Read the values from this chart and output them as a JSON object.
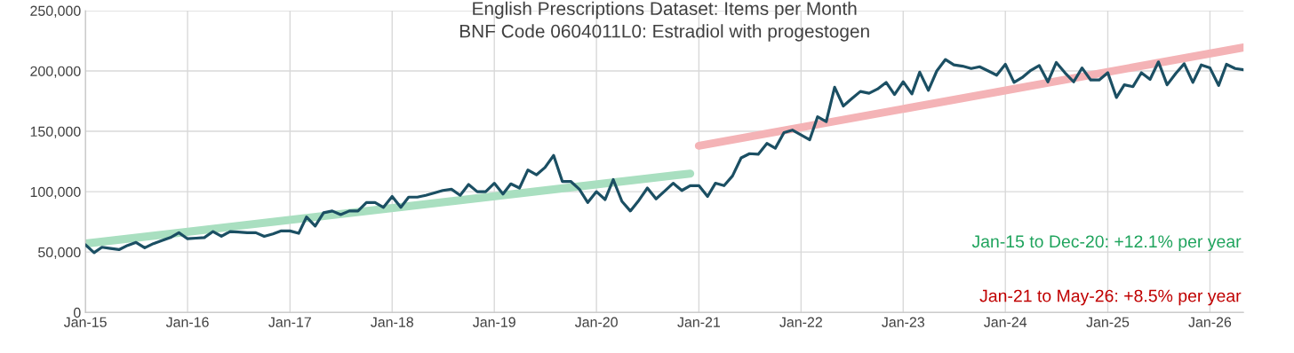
{
  "chart_data": {
    "type": "line",
    "title": "English Prescriptions Dataset: Items per Month",
    "subtitle": "BNF Code 0604011L0: Estradiol with progestogen",
    "x": [
      "2015-01",
      "2015-02",
      "2015-03",
      "2015-04",
      "2015-05",
      "2015-06",
      "2015-07",
      "2015-08",
      "2015-09",
      "2015-10",
      "2015-11",
      "2015-12",
      "2016-01",
      "2016-02",
      "2016-03",
      "2016-04",
      "2016-05",
      "2016-06",
      "2016-07",
      "2016-08",
      "2016-09",
      "2016-10",
      "2016-11",
      "2016-12",
      "2017-01",
      "2017-02",
      "2017-03",
      "2017-04",
      "2017-05",
      "2017-06",
      "2017-07",
      "2017-08",
      "2017-09",
      "2017-10",
      "2017-11",
      "2017-12",
      "2018-01",
      "2018-02",
      "2018-03",
      "2018-04",
      "2018-05",
      "2018-06",
      "2018-07",
      "2018-08",
      "2018-09",
      "2018-10",
      "2018-11",
      "2018-12",
      "2019-01",
      "2019-02",
      "2019-03",
      "2019-04",
      "2019-05",
      "2019-06",
      "2019-07",
      "2019-08",
      "2019-09",
      "2019-10",
      "2019-11",
      "2019-12",
      "2020-01",
      "2020-02",
      "2020-03",
      "2020-04",
      "2020-05",
      "2020-06",
      "2020-07",
      "2020-08",
      "2020-09",
      "2020-10",
      "2020-11",
      "2020-12",
      "2021-01",
      "2021-02",
      "2021-03",
      "2021-04",
      "2021-05",
      "2021-06",
      "2021-07",
      "2021-08",
      "2021-09",
      "2021-10",
      "2021-11",
      "2021-12",
      "2022-01",
      "2022-02",
      "2022-03",
      "2022-04",
      "2022-05",
      "2022-06",
      "2022-07",
      "2022-08",
      "2022-09",
      "2022-10",
      "2022-11",
      "2022-12",
      "2023-01",
      "2023-02",
      "2023-03",
      "2023-04",
      "2023-05",
      "2023-06",
      "2023-07",
      "2023-08",
      "2023-09",
      "2023-10",
      "2023-11",
      "2023-12",
      "2024-01",
      "2024-02",
      "2024-03",
      "2024-04",
      "2024-05",
      "2024-06",
      "2024-07",
      "2024-08",
      "2024-09",
      "2024-10",
      "2024-11",
      "2024-12",
      "2025-01",
      "2025-02",
      "2025-03",
      "2025-04",
      "2025-05",
      "2025-06",
      "2025-07",
      "2025-08",
      "2025-09",
      "2025-10",
      "2025-11",
      "2025-12",
      "2026-01",
      "2026-02",
      "2026-03",
      "2026-04",
      "2026-05"
    ],
    "series": [
      {
        "color": "#a9dfc0",
        "x": [
          "2015-01",
          "2020-12"
        ],
        "values": [
          57000,
          115000
        ]
      },
      {
        "color": "#f4b3b6",
        "x": [
          "2021-01",
          "2026-05"
        ],
        "values": [
          138000,
          219500
        ]
      },
      {
        "color": "#1b4f63",
        "values": [
          56000,
          49500,
          54000,
          53000,
          52000,
          55500,
          58000,
          53500,
          57000,
          59500,
          62000,
          66000,
          61000,
          61500,
          62000,
          67000,
          63000,
          67000,
          66500,
          66000,
          66000,
          63000,
          65000,
          67500,
          67500,
          65500,
          79000,
          71500,
          82500,
          84000,
          81000,
          84000,
          84000,
          91000,
          91000,
          87000,
          96000,
          87000,
          95500,
          95500,
          97000,
          99000,
          101000,
          102000,
          97000,
          106000,
          100000,
          100000,
          107000,
          98000,
          106500,
          103000,
          118000,
          114000,
          120000,
          130000,
          108500,
          108500,
          102000,
          91000,
          100000,
          93500,
          110000,
          92000,
          84000,
          93000,
          103000,
          94000,
          100500,
          107000,
          101000,
          105000,
          105000,
          96000,
          107000,
          105000,
          113000,
          128000,
          131500,
          131000,
          140000,
          136000,
          149000,
          151000,
          147000,
          143000,
          162000,
          158000,
          186500,
          171000,
          177000,
          183000,
          181500,
          185000,
          190500,
          180500,
          191000,
          181000,
          199000,
          184000,
          200000,
          209500,
          205000,
          204000,
          202000,
          203500,
          200000,
          196500,
          205500,
          190500,
          194500,
          200500,
          204500,
          191000,
          207000,
          198500,
          191000,
          202500,
          192500,
          192500,
          198500,
          178000,
          188500,
          187000,
          198500,
          193000,
          207500,
          188500,
          198000,
          206000,
          190500,
          205000,
          202500,
          188000,
          205500,
          202000,
          201000
        ]
      }
    ],
    "xlim": [
      "2015-01",
      "2026-05"
    ],
    "xticks": [
      {
        "value": "2015-01",
        "label": "Jan-15"
      },
      {
        "value": "2016-01",
        "label": "Jan-16"
      },
      {
        "value": "2017-01",
        "label": "Jan-17"
      },
      {
        "value": "2018-01",
        "label": "Jan-18"
      },
      {
        "value": "2019-01",
        "label": "Jan-19"
      },
      {
        "value": "2020-01",
        "label": "Jan-20"
      },
      {
        "value": "2021-01",
        "label": "Jan-21"
      },
      {
        "value": "2022-01",
        "label": "Jan-22"
      },
      {
        "value": "2023-01",
        "label": "Jan-23"
      },
      {
        "value": "2024-01",
        "label": "Jan-24"
      },
      {
        "value": "2025-01",
        "label": "Jan-25"
      },
      {
        "value": "2026-01",
        "label": "Jan-26"
      }
    ],
    "ylim": [
      0,
      250000
    ],
    "yticks": [
      0,
      {
        "value": 50000,
        "label": "50,000"
      },
      {
        "value": 100000,
        "label": "100,000"
      },
      {
        "value": 150000,
        "label": "150,000"
      },
      {
        "value": 200000,
        "label": "200,000"
      },
      {
        "value": 250000,
        "label": "250,000"
      }
    ],
    "grid": true,
    "marker": "none",
    "annotations": [
      "Jan-15 to Dec-20: +12.1% per year",
      "Jan-21 to May-26: +8.5% per year"
    ]
  }
}
